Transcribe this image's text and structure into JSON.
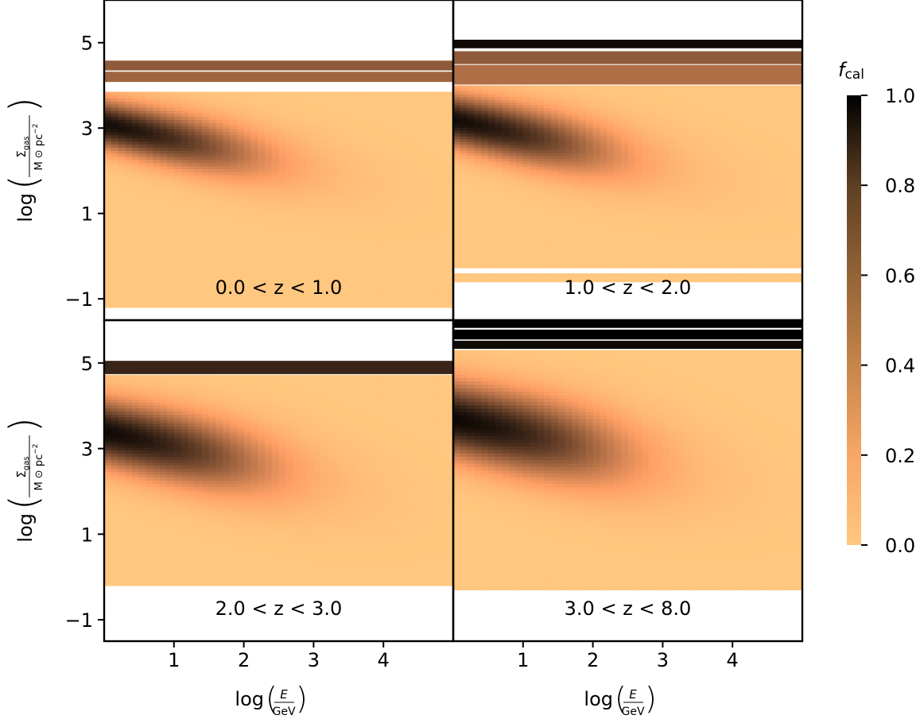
{
  "chart_data": {
    "type": "heatmap",
    "colormap": "copper_r",
    "x_axis": {
      "label_prefix": "log",
      "label_num": "E",
      "label_den": "GeV",
      "range": [
        0,
        5
      ],
      "ticks": [
        1,
        2,
        3,
        4
      ],
      "tick_labels": [
        "1",
        "2",
        "3",
        "4"
      ]
    },
    "y_axis": {
      "label_prefix": "log",
      "label_num": "Σ",
      "label_num_sub": "gas",
      "label_den": "M",
      "label_den_sun": "⊙",
      "label_den_unit": "pc",
      "label_den_exp": "−2",
      "range": [
        -1.5,
        6
      ],
      "ticks": [
        -1,
        1,
        3,
        5
      ],
      "tick_labels": [
        "−1",
        "1",
        "3",
        "5"
      ]
    },
    "colorbar": {
      "title": "f",
      "title_sub": "cal",
      "range": [
        0,
        1
      ],
      "ticks": [
        0,
        0.2,
        0.4,
        0.6,
        0.8,
        1.0
      ],
      "tick_labels": [
        "0.0",
        "0.2",
        "0.4",
        "0.6",
        "0.8",
        "1.0"
      ]
    },
    "panels": [
      {
        "label": "0.0 < z < 1.0",
        "data_ymin": -1.2,
        "data_ymax": 3.85,
        "peak_y": 3.1,
        "peak_value": 1.0,
        "sigma_y": 0.55,
        "fade_energy": 3.2,
        "stripes": [
          {
            "y0": 4.35,
            "y1": 4.58,
            "value": 0.55
          },
          {
            "y0": 4.08,
            "y1": 4.32,
            "value": 0.5
          }
        ],
        "gaps": [
          [
            3.85,
            4.08
          ]
        ]
      },
      {
        "label": "1.0 < z < 2.0",
        "data_ymin": -0.6,
        "data_ymax": 4.0,
        "peak_y": 3.2,
        "peak_value": 1.0,
        "sigma_y": 0.6,
        "fade_energy": 3.3,
        "stripes": [
          {
            "y0": 4.87,
            "y1": 5.07,
            "value": 0.95
          },
          {
            "y0": 4.5,
            "y1": 4.8,
            "value": 0.55
          },
          {
            "y0": 4.02,
            "y1": 4.48,
            "value": 0.45
          }
        ],
        "gaps": [
          [
            -0.4,
            -0.25
          ]
        ]
      },
      {
        "label": "2.0 < z < 3.0",
        "data_ymin": -0.2,
        "data_ymax": 4.72,
        "peak_y": 3.4,
        "peak_value": 1.0,
        "sigma_y": 0.75,
        "fade_energy": 3.4,
        "stripes": [
          {
            "y0": 4.74,
            "y1": 5.05,
            "value": 0.82
          }
        ],
        "gaps": []
      },
      {
        "label": "3.0 < z < 8.0",
        "data_ymin": -0.3,
        "data_ymax": 5.3,
        "peak_y": 3.7,
        "peak_value": 1.0,
        "sigma_y": 0.85,
        "fade_energy": 3.6,
        "stripes": [
          {
            "y0": 5.82,
            "y1": 6.0,
            "value": 1.0
          },
          {
            "y0": 5.55,
            "y1": 5.78,
            "value": 1.0
          },
          {
            "y0": 5.33,
            "y1": 5.52,
            "value": 0.95
          }
        ],
        "gaps": []
      }
    ]
  }
}
